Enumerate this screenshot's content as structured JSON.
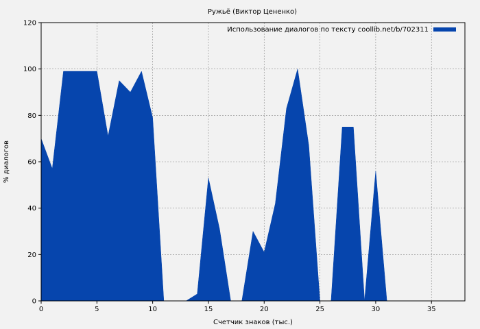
{
  "chart_data": {
    "type": "area",
    "title": "Ружьё (Виктор Цененко)",
    "xlabel": "Счетчик знаков (тыс.)",
    "ylabel": "% диалогов",
    "xlim": [
      0,
      38
    ],
    "ylim": [
      0,
      120
    ],
    "xticks": [
      0,
      5,
      10,
      15,
      20,
      25,
      30,
      35
    ],
    "yticks": [
      0,
      20,
      40,
      60,
      80,
      100,
      120
    ],
    "grid": true,
    "legend_position": "top-right",
    "series": [
      {
        "name": "Использование диалогов по тексту coollib.net/b/702311",
        "color": "#0645ad",
        "x": [
          0,
          1,
          2,
          3,
          4,
          5,
          6,
          7,
          8,
          9,
          10,
          11,
          12,
          13,
          14,
          15,
          16,
          17,
          18,
          19,
          20,
          21,
          22,
          23,
          24,
          25,
          26,
          27,
          28,
          29,
          30,
          31
        ],
        "y": [
          70,
          57,
          99,
          99,
          99,
          99,
          71,
          95,
          90,
          99,
          79,
          0,
          0,
          0,
          3,
          53,
          31,
          0,
          0,
          30,
          21,
          42,
          83,
          100,
          67,
          0,
          0,
          75,
          75,
          0,
          56,
          0
        ]
      }
    ]
  }
}
